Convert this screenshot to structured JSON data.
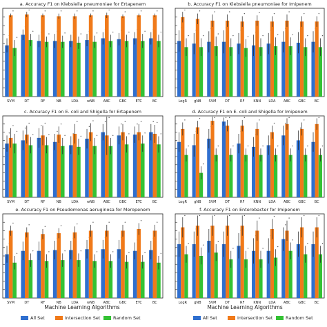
{
  "colors": {
    "all": "#2f6fcf",
    "intersection": "#f07a1a",
    "random": "#34c234",
    "axis": "#222222",
    "error": "#222222"
  },
  "legend": [
    {
      "key": "all",
      "label": "All Set"
    },
    {
      "key": "intersection",
      "label": "Intersection Set"
    },
    {
      "key": "random",
      "label": "Random Set"
    }
  ],
  "xlabel": "Machine Learning Algorithms",
  "chart_data": [
    {
      "type": "bar",
      "title": "a.  Accuracy F1 on Klebsiella pneumoniae for Ertapenem",
      "categories": [
        "SVM",
        "DT",
        "RF",
        "NB",
        "LDA",
        "wNB",
        "ABC",
        "GBC",
        "ETC",
        "BC"
      ],
      "ylim": [
        0,
        1
      ],
      "series": [
        {
          "key": "all",
          "values": [
            0.58,
            0.7,
            0.63,
            0.63,
            0.63,
            0.64,
            0.66,
            0.65,
            0.66,
            0.66
          ],
          "errors": [
            0.08,
            0.06,
            0.07,
            0.08,
            0.07,
            0.07,
            0.07,
            0.07,
            0.07,
            0.07
          ]
        },
        {
          "key": "intersection",
          "values": [
            0.92,
            0.93,
            0.92,
            0.91,
            0.91,
            0.92,
            0.92,
            0.91,
            0.92,
            0.92
          ],
          "errors": [
            0.02,
            0.03,
            0.02,
            0.03,
            0.03,
            0.02,
            0.03,
            0.02,
            0.02,
            0.02
          ]
        },
        {
          "key": "random",
          "values": [
            0.55,
            0.64,
            0.62,
            0.62,
            0.61,
            0.62,
            0.63,
            0.63,
            0.63,
            0.63
          ],
          "errors": [
            0.09,
            0.07,
            0.06,
            0.07,
            0.07,
            0.07,
            0.07,
            0.07,
            0.08,
            0.07
          ]
        }
      ]
    },
    {
      "type": "bar",
      "title": "b.  Accuracy F1 on Klebsiella pneumoniae for Imipenem",
      "categories": [
        "LogR",
        "gNB",
        "SVM",
        "DT",
        "RF",
        "KNN",
        "LDA",
        "ABC",
        "GBC",
        "BC"
      ],
      "ylim": [
        0,
        1
      ],
      "series": [
        {
          "key": "all",
          "values": [
            0.63,
            0.6,
            0.62,
            0.62,
            0.6,
            0.58,
            0.6,
            0.62,
            0.61,
            0.62
          ],
          "errors": [
            0.12,
            0.12,
            0.12,
            0.13,
            0.12,
            0.12,
            0.12,
            0.12,
            0.12,
            0.12
          ]
        },
        {
          "key": "intersection",
          "values": [
            0.9,
            0.88,
            0.86,
            0.86,
            0.85,
            0.86,
            0.85,
            0.86,
            0.85,
            0.85
          ],
          "errors": [
            0.06,
            0.06,
            0.07,
            0.07,
            0.06,
            0.06,
            0.06,
            0.07,
            0.06,
            0.06
          ]
        },
        {
          "key": "random",
          "values": [
            0.56,
            0.56,
            0.57,
            0.56,
            0.55,
            0.56,
            0.57,
            0.57,
            0.56,
            0.56
          ],
          "errors": [
            0.1,
            0.1,
            0.11,
            0.1,
            0.1,
            0.1,
            0.1,
            0.1,
            0.1,
            0.1
          ]
        }
      ]
    },
    {
      "type": "bar",
      "title": "c.  Accuracy F1 on E. coli and Shigella for Ertapenem",
      "categories": [
        "SVM",
        "DT",
        "RF",
        "NB",
        "LDA",
        "wNB",
        "ABC",
        "GBC",
        "ETC",
        "BC"
      ],
      "ylim": [
        0,
        1
      ],
      "series": [
        {
          "key": "all",
          "values": [
            0.66,
            0.7,
            0.73,
            0.68,
            0.64,
            0.72,
            0.8,
            0.76,
            0.77,
            0.8
          ],
          "errors": [
            0.1,
            0.12,
            0.12,
            0.1,
            0.11,
            0.12,
            0.1,
            0.11,
            0.1,
            0.1
          ]
        },
        {
          "key": "intersection",
          "values": [
            0.73,
            0.77,
            0.76,
            0.77,
            0.78,
            0.8,
            0.76,
            0.8,
            0.8,
            0.78
          ],
          "errors": [
            0.12,
            0.11,
            0.12,
            0.1,
            0.12,
            0.11,
            0.24,
            0.1,
            0.1,
            0.11
          ]
        },
        {
          "key": "random",
          "values": [
            0.66,
            0.64,
            0.64,
            0.63,
            0.62,
            0.63,
            0.63,
            0.65,
            0.66,
            0.65
          ],
          "errors": [
            0.12,
            0.1,
            0.1,
            0.1,
            0.1,
            0.1,
            0.1,
            0.1,
            0.1,
            0.1
          ]
        }
      ]
    },
    {
      "type": "bar",
      "title": "d.  Accuracy F1 on E. coli and Shigella for Imipenem",
      "categories": [
        "LogR",
        "gNB",
        "SVM",
        "DT",
        "RF",
        "KNN",
        "LDA",
        "ABC",
        "GBC",
        "BC"
      ],
      "ylim": [
        0,
        1
      ],
      "series": [
        {
          "key": "all",
          "values": [
            0.68,
            0.64,
            0.72,
            0.93,
            0.66,
            0.62,
            0.64,
            0.76,
            0.7,
            0.68
          ],
          "errors": [
            0.12,
            0.14,
            0.12,
            0.05,
            0.12,
            0.12,
            0.12,
            0.12,
            0.12,
            0.12
          ]
        },
        {
          "key": "intersection",
          "values": [
            0.84,
            0.86,
            0.94,
            0.88,
            0.88,
            0.84,
            0.8,
            0.9,
            0.84,
            0.9
          ],
          "errors": [
            0.08,
            0.08,
            0.05,
            0.07,
            0.07,
            0.08,
            0.08,
            0.07,
            0.08,
            0.07
          ]
        },
        {
          "key": "random",
          "values": [
            0.52,
            0.3,
            0.52,
            0.52,
            0.52,
            0.52,
            0.52,
            0.52,
            0.52,
            0.52
          ],
          "errors": [
            0.08,
            0.08,
            0.08,
            0.08,
            0.08,
            0.08,
            0.08,
            0.08,
            0.08,
            0.08
          ]
        }
      ]
    },
    {
      "type": "bar",
      "title": "e.  Accuracy F1 on Pseudomonas aeruginosa for Meropenem",
      "categories": [
        "SVM",
        "DT",
        "RF",
        "NB",
        "LDA",
        "wNB",
        "ABC",
        "GBC",
        "ETC",
        "BC"
      ],
      "ylim": [
        0,
        1
      ],
      "series": [
        {
          "key": "all",
          "values": [
            0.52,
            0.56,
            0.56,
            0.57,
            0.57,
            0.58,
            0.58,
            0.58,
            0.56,
            0.57
          ],
          "errors": [
            0.1,
            0.11,
            0.11,
            0.11,
            0.11,
            0.11,
            0.11,
            0.11,
            0.1,
            0.11
          ]
        },
        {
          "key": "intersection",
          "values": [
            0.8,
            0.78,
            0.76,
            0.77,
            0.78,
            0.8,
            0.8,
            0.8,
            0.82,
            0.8
          ],
          "errors": [
            0.06,
            0.06,
            0.06,
            0.06,
            0.07,
            0.07,
            0.07,
            0.07,
            0.07,
            0.07
          ]
        },
        {
          "key": "random",
          "values": [
            0.42,
            0.45,
            0.44,
            0.45,
            0.45,
            0.44,
            0.44,
            0.43,
            0.43,
            0.42
          ],
          "errors": [
            0.08,
            0.08,
            0.08,
            0.08,
            0.08,
            0.08,
            0.08,
            0.08,
            0.08,
            0.08
          ]
        }
      ]
    },
    {
      "type": "bar",
      "title": "f.  Accuracy F1 on Enterobacter for Imipenem",
      "categories": [
        "LogR",
        "gNB",
        "SVM",
        "DT",
        "RF",
        "KNN",
        "LDA",
        "ABC",
        "GBC",
        "BC"
      ],
      "ylim": [
        0,
        1
      ],
      "series": [
        {
          "key": "all",
          "values": [
            0.64,
            0.64,
            0.68,
            0.64,
            0.62,
            0.56,
            0.56,
            0.7,
            0.64,
            0.64
          ],
          "errors": [
            0.15,
            0.15,
            0.14,
            0.15,
            0.15,
            0.15,
            0.15,
            0.14,
            0.15,
            0.15
          ]
        },
        {
          "key": "intersection",
          "values": [
            0.84,
            0.86,
            0.86,
            0.86,
            0.86,
            0.8,
            0.82,
            0.8,
            0.84,
            0.84
          ],
          "errors": [
            0.12,
            0.12,
            0.12,
            0.12,
            0.12,
            0.12,
            0.12,
            0.12,
            0.12,
            0.12
          ]
        },
        {
          "key": "random",
          "values": [
            0.52,
            0.5,
            0.54,
            0.46,
            0.46,
            0.46,
            0.48,
            0.56,
            0.52,
            0.52
          ],
          "errors": [
            0.1,
            0.1,
            0.1,
            0.1,
            0.1,
            0.1,
            0.1,
            0.1,
            0.1,
            0.1
          ]
        }
      ]
    }
  ]
}
